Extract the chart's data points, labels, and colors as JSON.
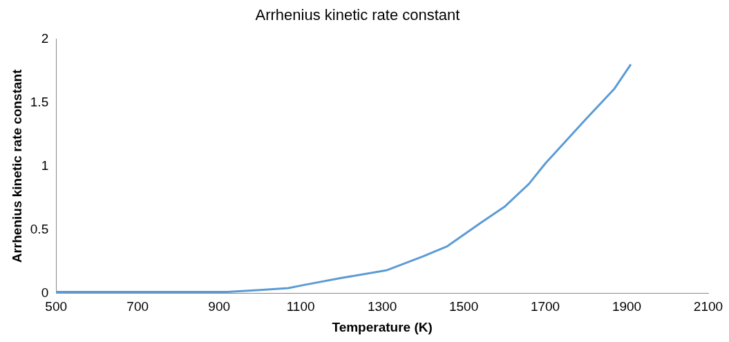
{
  "chart_data": {
    "type": "line",
    "title": "Arrhenius kinetic rate constant",
    "xlabel": "Temperature (K)",
    "ylabel": "Arrhenius kinetic rate constant",
    "x": [
      500,
      700,
      920,
      1000,
      1070,
      1100,
      1200,
      1310,
      1400,
      1460,
      1540,
      1600,
      1660,
      1700,
      1800,
      1870,
      1910
    ],
    "series": [
      {
        "color": "#5b9bd5",
        "values": [
          0.01,
          0.01,
          0.01,
          0.025,
          0.04,
          0.06,
          0.12,
          0.18,
          0.29,
          0.37,
          0.55,
          0.68,
          0.86,
          1.02,
          1.37,
          1.61,
          1.8
        ]
      }
    ],
    "xlim": [
      500,
      2100
    ],
    "xticks": [
      500,
      700,
      900,
      1100,
      1300,
      1500,
      1700,
      1900,
      2100
    ],
    "ylim": [
      0,
      2
    ],
    "yticks": [
      0,
      0.5,
      1,
      1.5,
      2
    ],
    "grid": false,
    "legend": false,
    "marker": "none",
    "line_style": "solid"
  }
}
